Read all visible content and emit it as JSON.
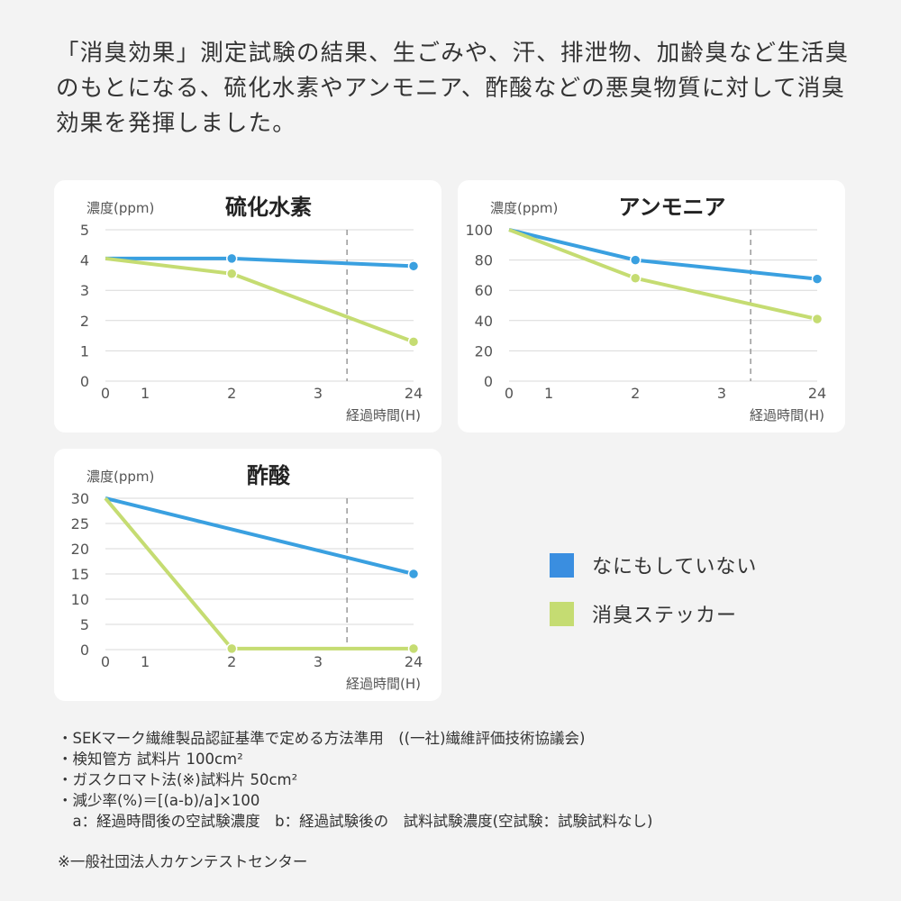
{
  "intro": "「消臭効果」測定試験の結果、生ごみや、汗、排泄物、加齢臭など生活臭のもとになる、硫化水素やアンモニア、酢酸などの悪臭物質に対して消臭効果を発揮しました。",
  "colors": {
    "none": "#3aa0e0",
    "sticker": "#c5dc72",
    "grid": "#d9d9d9",
    "dash": "#999999"
  },
  "legend": [
    {
      "label": "なにもしていない",
      "color": "#3a8ee0"
    },
    {
      "label": "消臭ステッカー",
      "color": "#c5dc72"
    }
  ],
  "chart_data": [
    {
      "type": "line",
      "title": "硫化水素",
      "ylabel": "濃度(ppm)",
      "xlabel": "経過時間(H)",
      "x_ticks": [
        "0",
        "1",
        "2",
        "3",
        "24"
      ],
      "y_ticks": [
        "0",
        "1",
        "2",
        "3",
        "4",
        "5"
      ],
      "ylim": [
        0,
        5
      ],
      "axis_break": "between 3 and 24",
      "grid": true,
      "series": [
        {
          "key": "none",
          "x": [
            0,
            2,
            24
          ],
          "y": [
            4.05,
            4.05,
            3.8
          ]
        },
        {
          "key": "sticker",
          "x": [
            0,
            2,
            24
          ],
          "y": [
            4.05,
            3.55,
            1.3
          ]
        }
      ]
    },
    {
      "type": "line",
      "title": "アンモニア",
      "ylabel": "濃度(ppm)",
      "xlabel": "経過時間(H)",
      "x_ticks": [
        "0",
        "1",
        "2",
        "3",
        "24"
      ],
      "y_ticks": [
        "0",
        "20",
        "40",
        "60",
        "80",
        "100"
      ],
      "ylim": [
        0,
        100
      ],
      "axis_break": "between 3 and 24",
      "grid": true,
      "series": [
        {
          "key": "none",
          "x": [
            0,
            2,
            24
          ],
          "y": [
            100,
            80,
            67.5
          ]
        },
        {
          "key": "sticker",
          "x": [
            0,
            2,
            24
          ],
          "y": [
            100,
            68,
            41
          ]
        }
      ]
    },
    {
      "type": "line",
      "title": "酢酸",
      "ylabel": "濃度(ppm)",
      "xlabel": "経過時間(H)",
      "x_ticks": [
        "0",
        "1",
        "2",
        "3",
        "24"
      ],
      "y_ticks": [
        "0",
        "5",
        "10",
        "15",
        "20",
        "25",
        "30"
      ],
      "ylim": [
        0,
        30
      ],
      "axis_break": "between 3 and 24",
      "grid": true,
      "series": [
        {
          "key": "none",
          "x": [
            0,
            24
          ],
          "y": [
            30,
            15
          ]
        },
        {
          "key": "sticker",
          "x": [
            0,
            2,
            24
          ],
          "y": [
            30,
            0.2,
            0.2
          ]
        }
      ]
    }
  ],
  "notes": [
    "・SEKマーク繊維製品認証基準で定める方法準用　((一社)繊維評価技術協議会)",
    "・検知管方 試料片 100cm²",
    "・ガスクロマト法(※)試料片 50cm²",
    "・減少率(%)＝[(a-b)/a]×100",
    "　a：経過時間後の空試験濃度　b：経過試験後の　試料試験濃度(空試験：試験試料なし)"
  ],
  "source": "※一般社団法人カケンテストセンター"
}
